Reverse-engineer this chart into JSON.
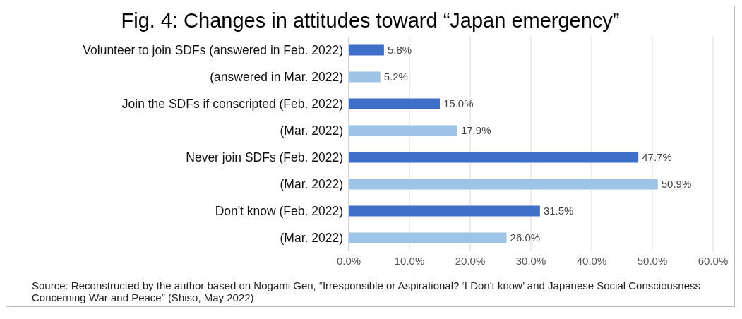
{
  "chart_data": {
    "type": "bar",
    "orientation": "horizontal",
    "title": "Fig. 4: Changes in attitudes toward “Japan emergency”",
    "categories": [
      "Volunteer to join SDFs (answered in Feb. 2022)",
      "(answered in Mar. 2022)",
      "Join the SDFs if conscripted (Feb. 2022)",
      "(Mar. 2022)",
      "Never join SDFs (Feb. 2022)",
      "(Mar. 2022)",
      "Don't know (Feb. 2022)",
      "(Mar. 2022)"
    ],
    "values": [
      5.8,
      5.2,
      15.0,
      17.9,
      47.7,
      50.9,
      31.5,
      26.0
    ],
    "value_labels": [
      "5.8%",
      "5.2%",
      "15.0%",
      "17.9%",
      "47.7%",
      "50.9%",
      "31.5%",
      "26.0%"
    ],
    "colors": [
      "#3e6fc9",
      "#9dc3e6",
      "#3e6fc9",
      "#9dc3e6",
      "#3e6fc9",
      "#9dc3e6",
      "#3e6fc9",
      "#9dc3e6"
    ],
    "xlim": [
      0,
      60
    ],
    "xticks": [
      {
        "value": 0,
        "label": "0.0%"
      },
      {
        "value": 10,
        "label": "10.0%"
      },
      {
        "value": 20,
        "label": "20.0%"
      },
      {
        "value": 30,
        "label": "30.0%"
      },
      {
        "value": 40,
        "label": "40.0%"
      },
      {
        "value": 50,
        "label": "50.0%"
      },
      {
        "value": 60,
        "label": "60.0%"
      }
    ],
    "grid": "x",
    "legend": false,
    "annotations": [
      "Source: Reconstructed by the author based on Nogami Gen, “Irresponsible or Aspirational? ‘I Don't know’ and Japanese Social Consciousness Concerning War and Peace” (Shiso, May 2022)"
    ]
  }
}
